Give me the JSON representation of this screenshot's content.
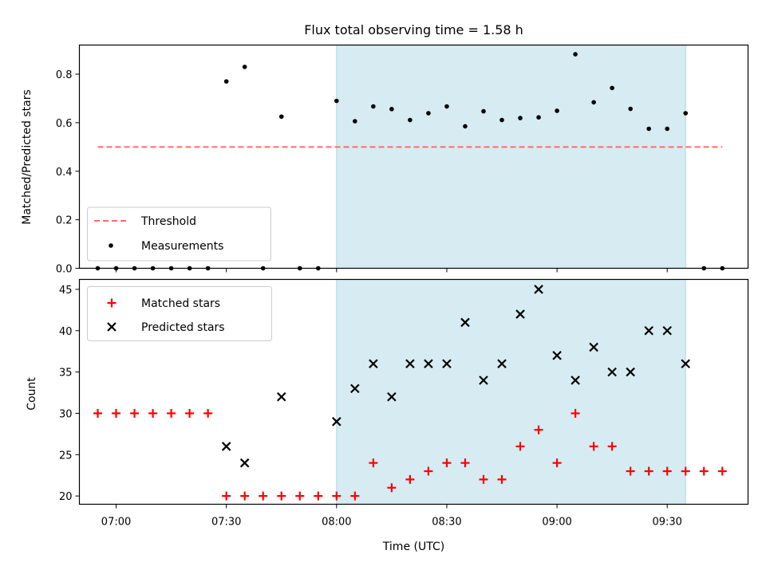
{
  "title": "Flux total observing time = 1.58 h",
  "chart_data": [
    {
      "type": "scatter",
      "panel": "top",
      "ylabel": "Matched/Predicted stars",
      "xlim": [
        "06:50",
        "09:52"
      ],
      "ylim": [
        0,
        0.92
      ],
      "yticks": [
        0.0,
        0.2,
        0.4,
        0.6,
        0.8
      ],
      "ytick_labels": [
        "0.0",
        "0.2",
        "0.4",
        "0.6",
        "0.8"
      ],
      "shaded_interval": {
        "start": "08:00",
        "end": "09:35",
        "color": "#add8e6"
      },
      "threshold": {
        "name": "Threshold",
        "value": 0.5,
        "start": "06:55",
        "end": "09:45",
        "color": "#ff6b6b",
        "style": "dashed"
      },
      "series": [
        {
          "name": "Measurements",
          "marker": "dot",
          "color": "#000000",
          "x": [
            "06:55",
            "07:00",
            "07:05",
            "07:10",
            "07:15",
            "07:20",
            "07:25",
            "07:30",
            "07:35",
            "07:40",
            "07:45",
            "07:50",
            "07:55",
            "08:00",
            "08:05",
            "08:10",
            "08:15",
            "08:20",
            "08:25",
            "08:30",
            "08:35",
            "08:40",
            "08:45",
            "08:50",
            "08:55",
            "09:00",
            "09:05",
            "09:10",
            "09:15",
            "09:20",
            "09:25",
            "09:30",
            "09:35",
            "09:40",
            "09:45"
          ],
          "y": [
            0,
            0,
            0,
            0,
            0,
            0,
            0,
            0.77,
            0.83,
            0,
            0.625,
            0,
            0,
            0.69,
            0.606,
            0.667,
            0.656,
            0.611,
            0.639,
            0.667,
            0.585,
            0.647,
            0.611,
            0.619,
            0.622,
            0.649,
            0.882,
            0.684,
            0.743,
            0.657,
            0.575,
            0.575,
            0.639,
            0,
            0
          ]
        }
      ],
      "legend": {
        "placement": "lower-left",
        "entries": [
          "Threshold",
          "Measurements"
        ]
      }
    },
    {
      "type": "scatter",
      "panel": "bottom",
      "xlabel": "Time (UTC)",
      "ylabel": "Count",
      "xlim": [
        "06:50",
        "09:52"
      ],
      "ylim": [
        19,
        46.2
      ],
      "xticks": [
        "07:00",
        "07:30",
        "08:00",
        "08:30",
        "09:00",
        "09:30"
      ],
      "yticks": [
        20,
        25,
        30,
        35,
        40,
        45
      ],
      "ytick_labels": [
        "20",
        "25",
        "30",
        "35",
        "40",
        "45"
      ],
      "shaded_interval": {
        "start": "08:00",
        "end": "09:35",
        "color": "#add8e6"
      },
      "series": [
        {
          "name": "Matched stars",
          "marker": "plus",
          "color": "#ff0000",
          "x": [
            "06:55",
            "07:00",
            "07:05",
            "07:10",
            "07:15",
            "07:20",
            "07:25",
            "07:30",
            "07:35",
            "07:40",
            "07:45",
            "07:50",
            "07:55",
            "08:00",
            "08:05",
            "08:10",
            "08:15",
            "08:20",
            "08:25",
            "08:30",
            "08:35",
            "08:40",
            "08:45",
            "08:50",
            "08:55",
            "09:00",
            "09:05",
            "09:10",
            "09:15",
            "09:20",
            "09:25",
            "09:30",
            "09:35",
            "09:40",
            "09:45"
          ],
          "y": [
            30,
            30,
            30,
            30,
            30,
            30,
            30,
            20,
            20,
            20,
            20,
            20,
            20,
            20,
            20,
            24,
            21,
            22,
            23,
            24,
            24,
            22,
            22,
            26,
            28,
            24,
            30,
            26,
            26,
            23,
            23,
            23,
            23,
            23,
            23
          ]
        },
        {
          "name": "Predicted stars",
          "marker": "x",
          "color": "#000000",
          "x": [
            "07:30",
            "07:35",
            "07:45",
            "08:00",
            "08:05",
            "08:10",
            "08:15",
            "08:20",
            "08:25",
            "08:30",
            "08:35",
            "08:40",
            "08:45",
            "08:50",
            "08:55",
            "09:00",
            "09:05",
            "09:10",
            "09:15",
            "09:20",
            "09:25",
            "09:30",
            "09:35"
          ],
          "y": [
            26,
            24,
            32,
            29,
            33,
            36,
            32,
            36,
            36,
            36,
            41,
            34,
            36,
            42,
            45,
            37,
            34,
            38,
            35,
            35,
            40,
            40,
            36
          ]
        }
      ],
      "legend": {
        "placement": "upper-left",
        "entries": [
          "Matched stars",
          "Predicted stars"
        ]
      }
    }
  ]
}
